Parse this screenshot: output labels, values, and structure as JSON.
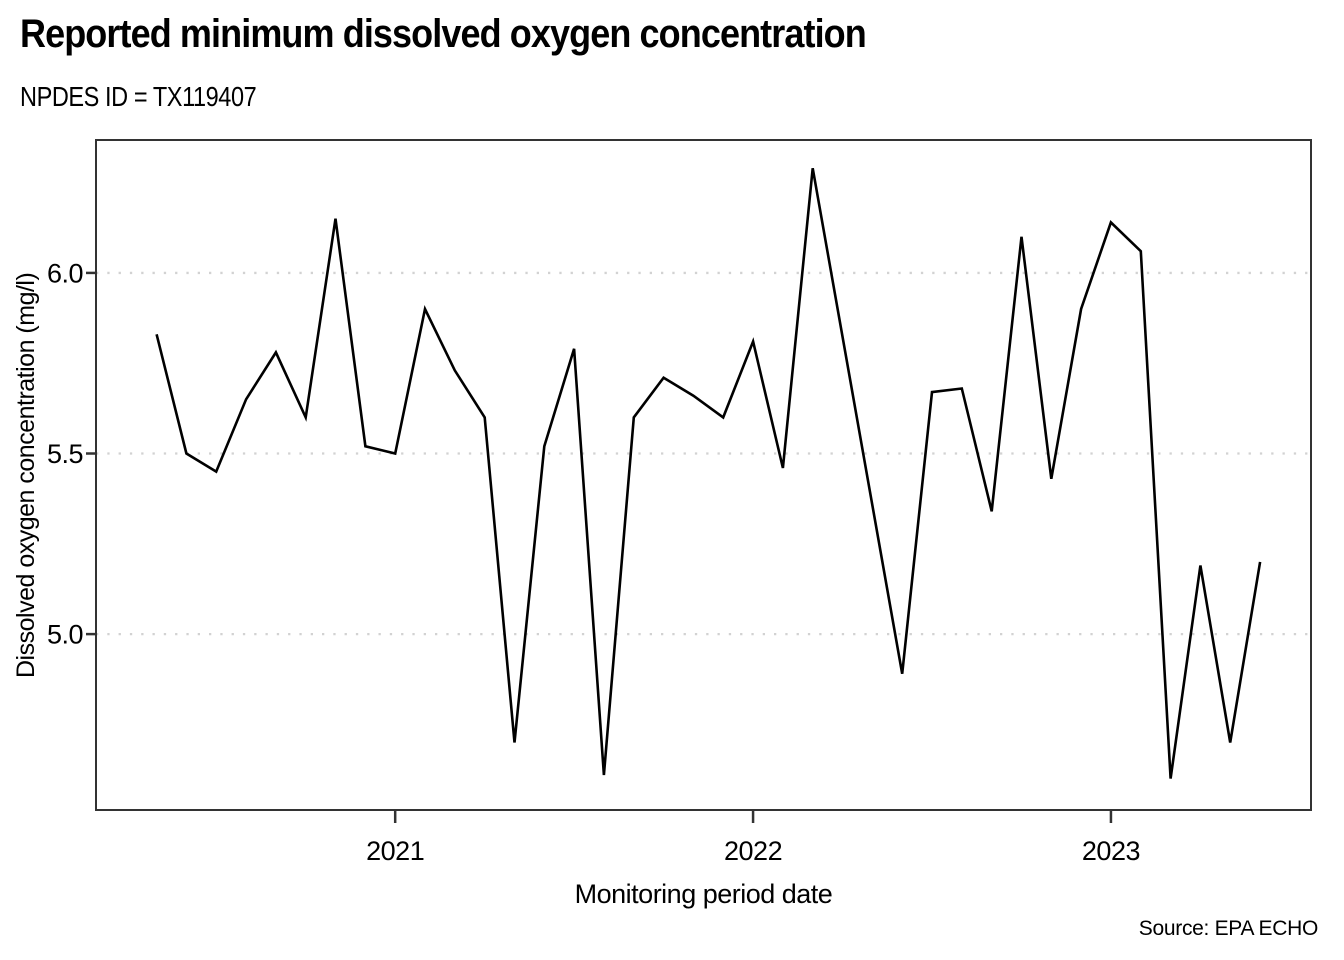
{
  "header": {
    "title": "Reported minimum dissolved oxygen concentration",
    "subtitle": "NPDES ID = TX119407"
  },
  "chart_data": {
    "type": "line",
    "title": "Reported minimum dissolved oxygen concentration",
    "subtitle": "NPDES ID = TX119407",
    "xlabel": "Monitoring period date",
    "ylabel": "Dissolved oxygen concentration (mg/l)",
    "source": "Source: EPA ECHO",
    "legend": "none",
    "grid": "horizontal-dotted",
    "x_ticks": [
      2021,
      2022,
      2023
    ],
    "x_tick_labels": [
      "2021",
      "2022",
      "2023"
    ],
    "y_ticks": [
      5.0,
      5.5,
      6.0
    ],
    "y_tick_labels": [
      "5.0",
      "5.5",
      "6.0"
    ],
    "xlim_decimal_years": [
      2020.164,
      2023.559
    ],
    "ylim": [
      4.513,
      6.368
    ],
    "line_color": "#000000",
    "grid_color": "#d2d2d2",
    "frame_color": "#333333",
    "points": [
      {
        "date": "2020-05",
        "value": 5.83
      },
      {
        "date": "2020-06",
        "value": 5.5
      },
      {
        "date": "2020-07",
        "value": 5.45
      },
      {
        "date": "2020-08",
        "value": 5.65
      },
      {
        "date": "2020-09",
        "value": 5.78
      },
      {
        "date": "2020-10",
        "value": 5.6
      },
      {
        "date": "2020-11",
        "value": 6.15
      },
      {
        "date": "2020-12",
        "value": 5.52
      },
      {
        "date": "2021-01",
        "value": 5.5
      },
      {
        "date": "2021-02",
        "value": 5.9
      },
      {
        "date": "2021-03",
        "value": 5.73
      },
      {
        "date": "2021-04",
        "value": 5.6
      },
      {
        "date": "2021-05",
        "value": 4.7
      },
      {
        "date": "2021-06",
        "value": 5.52
      },
      {
        "date": "2021-07",
        "value": 5.79
      },
      {
        "date": "2021-08",
        "value": 4.61
      },
      {
        "date": "2021-09",
        "value": 5.6
      },
      {
        "date": "2021-10",
        "value": 5.71
      },
      {
        "date": "2021-11",
        "value": 5.66
      },
      {
        "date": "2021-12",
        "value": 5.6
      },
      {
        "date": "2022-01",
        "value": 5.81
      },
      {
        "date": "2022-02",
        "value": 5.46
      },
      {
        "date": "2022-03",
        "value": 6.29
      },
      {
        "date": "2022-06",
        "value": 4.89
      },
      {
        "date": "2022-07",
        "value": 5.67
      },
      {
        "date": "2022-08",
        "value": 5.68
      },
      {
        "date": "2022-09",
        "value": 5.34
      },
      {
        "date": "2022-10",
        "value": 6.1
      },
      {
        "date": "2022-11",
        "value": 5.43
      },
      {
        "date": "2022-12",
        "value": 5.9
      },
      {
        "date": "2023-01",
        "value": 6.14
      },
      {
        "date": "2023-02",
        "value": 6.06
      },
      {
        "date": "2023-03",
        "value": 4.6
      },
      {
        "date": "2023-04",
        "value": 5.19
      },
      {
        "date": "2023-05",
        "value": 4.7
      },
      {
        "date": "2023-06",
        "value": 5.2
      }
    ]
  }
}
